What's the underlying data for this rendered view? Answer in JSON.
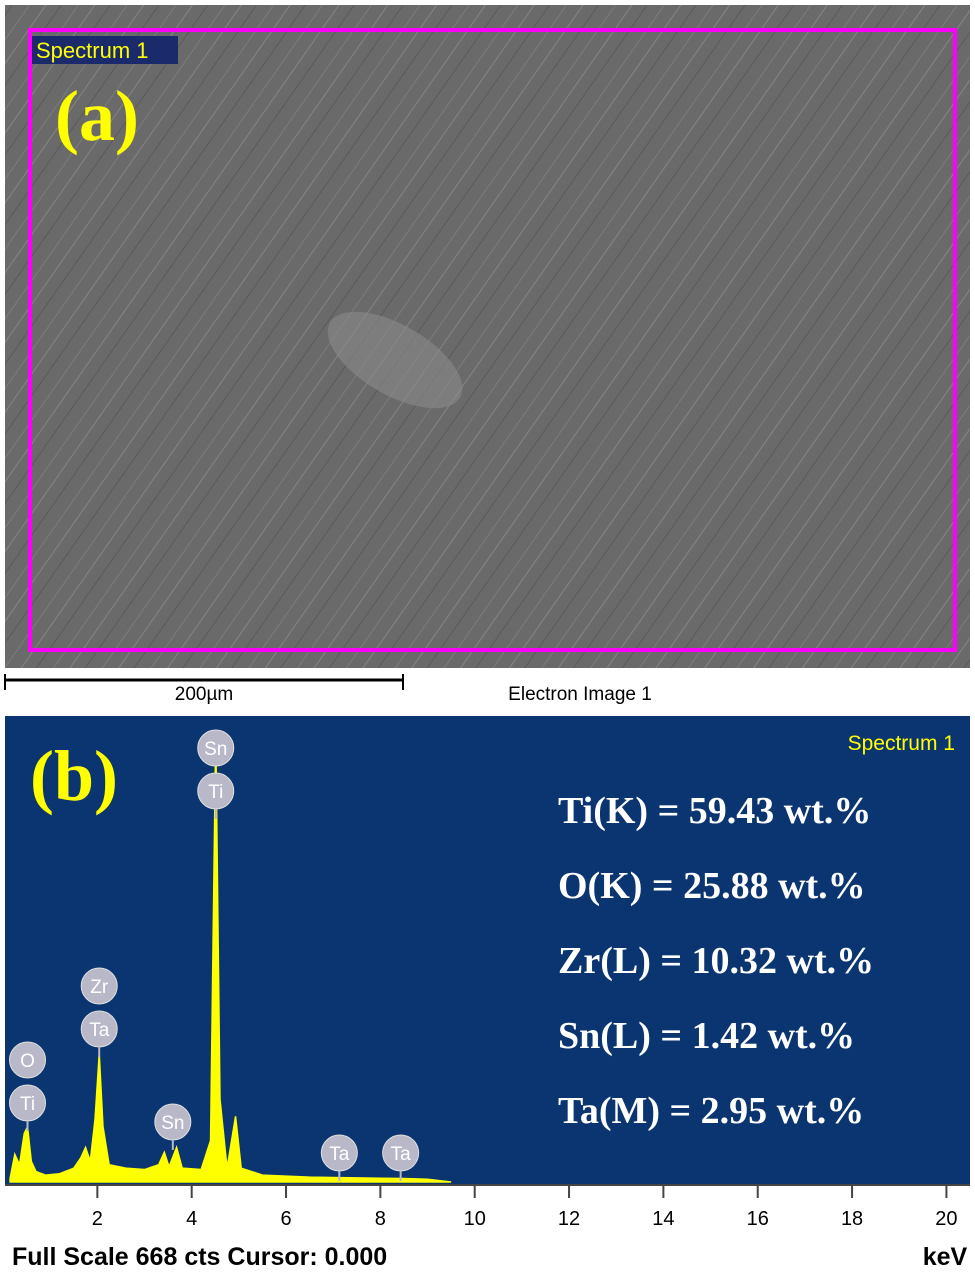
{
  "image": {
    "region_label": "Spectrum 1",
    "panel_label": "(a)",
    "scale_bar_label": "200µm",
    "caption": "Electron Image 1"
  },
  "chart_data": {
    "type": "area",
    "panel_label": "(b)",
    "title": "Spectrum 1",
    "color": "#ffff00",
    "x": [
      0.15,
      0.25,
      0.35,
      0.45,
      0.52,
      0.6,
      0.7,
      0.9,
      1.2,
      1.5,
      1.65,
      1.75,
      1.85,
      1.95,
      2.04,
      2.12,
      2.25,
      2.6,
      3.0,
      3.3,
      3.42,
      3.52,
      3.68,
      3.8,
      4.2,
      4.4,
      4.51,
      4.6,
      4.75,
      4.93,
      5.05,
      5.5,
      6.5,
      7.5,
      8.5,
      9.0,
      9.5
    ],
    "values": [
      5,
      40,
      25,
      70,
      80,
      30,
      15,
      10,
      12,
      20,
      35,
      50,
      30,
      90,
      185,
      80,
      25,
      20,
      18,
      25,
      43,
      22,
      50,
      20,
      18,
      60,
      650,
      120,
      20,
      95,
      20,
      10,
      7,
      6,
      5,
      4,
      0
    ],
    "xlim": [
      0,
      20.5
    ],
    "ylim": [
      0,
      668
    ],
    "xticks": [
      2,
      4,
      6,
      8,
      10,
      12,
      14,
      16,
      18,
      20
    ],
    "x_label": "keV",
    "footer": "Full Scale 668 cts Cursor: 0.000",
    "peak_labels": [
      {
        "x": 0.52,
        "labels": [
          "O",
          "Ti"
        ]
      },
      {
        "x": 2.04,
        "labels": [
          "Zr",
          "Ta"
        ]
      },
      {
        "x": 3.6,
        "labels": [
          "Sn"
        ]
      },
      {
        "x": 4.51,
        "labels": [
          "Sn",
          "Ti"
        ]
      },
      {
        "x": 7.13,
        "labels": [
          "Ta"
        ]
      },
      {
        "x": 8.43,
        "labels": [
          "Ta"
        ]
      }
    ],
    "composition": [
      "Ti(K) = 59.43 wt.%",
      "O(K) = 25.88 wt.%",
      "Zr(L) = 10.32 wt.%",
      "Sn(L) = 1.42 wt.%",
      "Ta(M) = 2.95 wt.%"
    ]
  }
}
